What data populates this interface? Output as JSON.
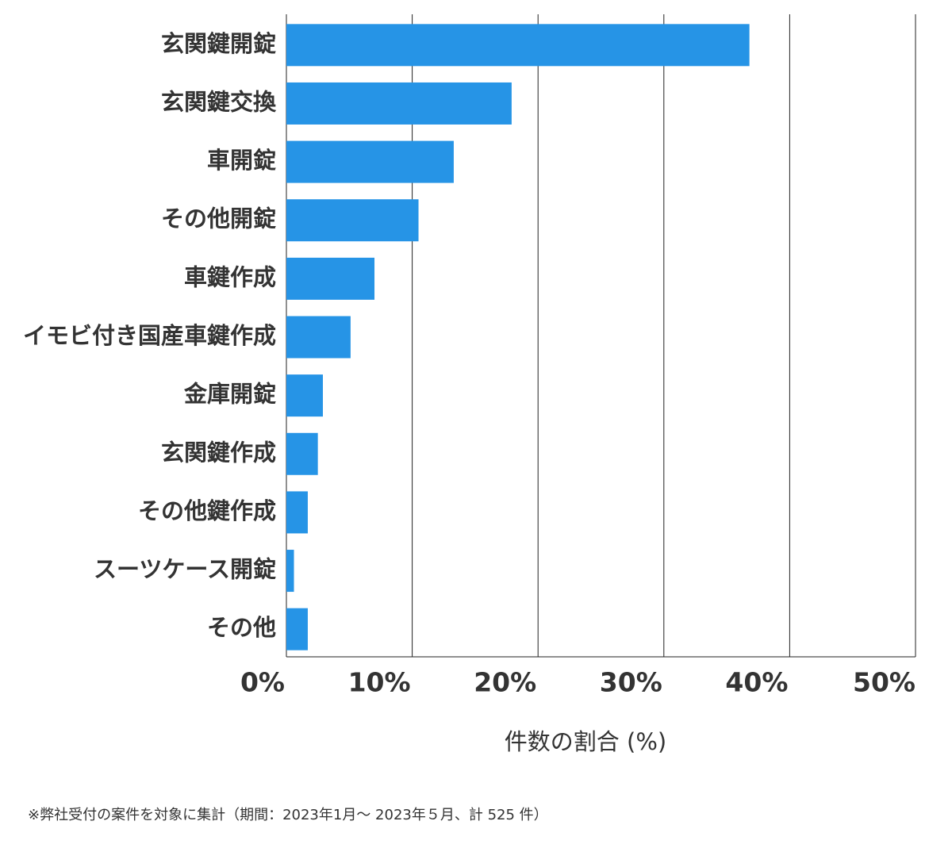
{
  "chart_data": {
    "type": "bar",
    "orientation": "horizontal",
    "categories": [
      "玄関鍵開錠",
      "玄関鍵交換",
      "車開錠",
      "その他開錠",
      "車鍵作成",
      "イモビ付き国産車鍵作成",
      "金庫開錠",
      "玄関鍵作成",
      "その他鍵作成",
      "スーツケース開錠",
      "その他"
    ],
    "values": [
      36.8,
      17.9,
      13.3,
      10.5,
      7.0,
      5.1,
      2.9,
      2.5,
      1.7,
      0.6,
      1.7
    ],
    "color": "#2694e6",
    "xlim": [
      0,
      50
    ],
    "xticks": [
      {
        "value": 0,
        "label": "0%"
      },
      {
        "value": 10,
        "label": "10%"
      },
      {
        "value": 20,
        "label": "20%"
      },
      {
        "value": 30,
        "label": "30%"
      },
      {
        "value": 40,
        "label": "40%"
      },
      {
        "value": 50,
        "label": "50%"
      }
    ],
    "x_label": "件数の割合 (%)",
    "grid": true,
    "footnote": "※弊社受付の案件を対象に集計（期間：2023年1月～ 2023年５月、計 525 件）"
  }
}
